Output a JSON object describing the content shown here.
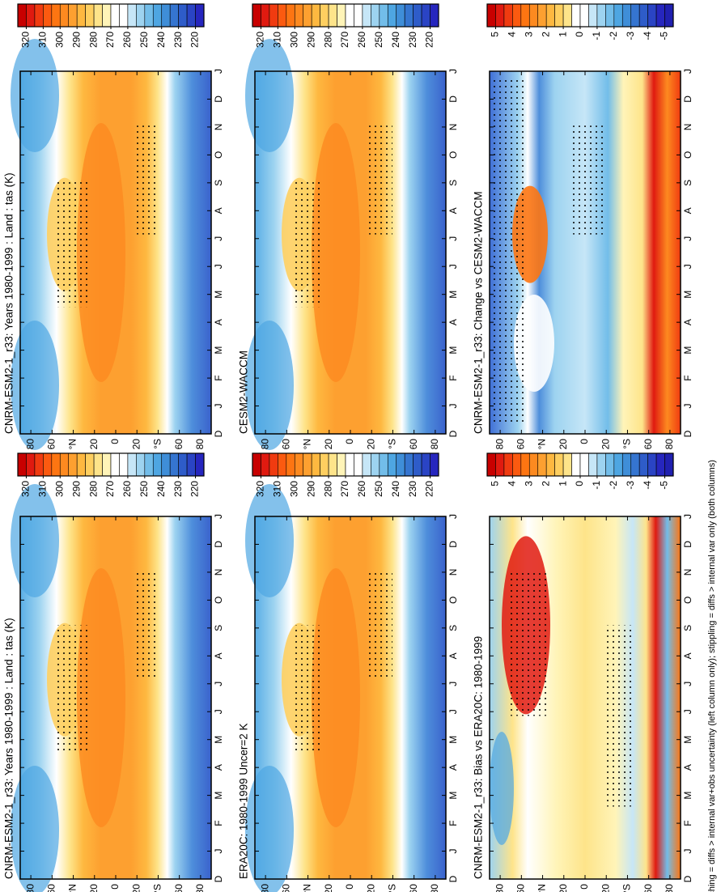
{
  "lat_ticks": [
    80,
    60,
    {
      "value": 40,
      "label": "°N"
    },
    20,
    0,
    {
      "value": -20,
      "label": "20"
    },
    {
      "value": -40,
      "label": "°S"
    },
    {
      "value": -60,
      "label": "60"
    },
    {
      "value": -80,
      "label": "80"
    }
  ],
  "lat_lim": [
    90,
    -90
  ],
  "months": [
    "D",
    "J",
    "F",
    "M",
    "A",
    "M",
    "J",
    "J",
    "A",
    "S",
    "O",
    "N",
    "D",
    "J"
  ],
  "footer": "hatching = diffs > internal var+obs uncertainty (left column only); stippling = diffs > internal var only (both columns)",
  "panels": [
    {
      "title": "CNRM-ESM2-1_r33: Years 1980-1999 : Land : tas (K)",
      "colorbar": {
        "lim": [
          325,
          215
        ],
        "labels": [
          320,
          310,
          300,
          290,
          280,
          270,
          260,
          250,
          240,
          230,
          220
        ],
        "colors": [
          "#c80000",
          "#e01a10",
          "#f03b10",
          "#fb5a10",
          "#fd7512",
          "#fd8a20",
          "#fda030",
          "#feb840",
          "#fecf60",
          "#fee48a",
          "#fff4b8",
          "#ffffff",
          "#ffffff",
          "#c6e6f7",
          "#9dd3f0",
          "#72bde9",
          "#4ea6e2",
          "#3f8ed8",
          "#3575d0",
          "#2e5cc9",
          "#2a44c4",
          "#2626be"
        ]
      }
    },
    {
      "title": "CESM2-WACCM",
      "colorbar": {
        "lim": [
          325,
          215
        ],
        "labels": [
          320,
          310,
          300,
          290,
          280,
          270,
          260,
          250,
          240,
          230,
          220
        ],
        "colors": [
          "#c80000",
          "#e01a10",
          "#f03b10",
          "#fb5a10",
          "#fd7512",
          "#fd8a20",
          "#fda030",
          "#feb840",
          "#fecf60",
          "#fee48a",
          "#fff4b8",
          "#ffffff",
          "#ffffff",
          "#c6e6f7",
          "#9dd3f0",
          "#72bde9",
          "#4ea6e2",
          "#3f8ed8",
          "#3575d0",
          "#2e5cc9",
          "#2a44c4",
          "#2626be"
        ]
      }
    },
    {
      "title": "CNRM-ESM2-1_r33: Change vs CESM2-WACCM",
      "colorbar": {
        "lim": [
          5.5,
          -5.5
        ],
        "labels": [
          5,
          4,
          3,
          2,
          1,
          0,
          -1,
          -2,
          -3,
          -4,
          -5
        ],
        "colors": [
          "#c80000",
          "#e01a10",
          "#f03b10",
          "#fb5a10",
          "#fd7512",
          "#fd8a20",
          "#fda030",
          "#feb840",
          "#fecf60",
          "#fee48a",
          "#ffffff",
          "#ffffff",
          "#c6e6f7",
          "#9dd3f0",
          "#72bde9",
          "#4ea6e2",
          "#3f8ed8",
          "#3575d0",
          "#2e5cc9",
          "#2a44c4",
          "#2626be",
          "#2020b0"
        ]
      }
    },
    {
      "title": "CNRM-ESM2-1_r33: Years 1980-1999 : Land : tas (K)",
      "colorbar": {
        "lim": [
          325,
          215
        ],
        "labels": [
          320,
          310,
          300,
          290,
          280,
          270,
          260,
          250,
          240,
          230,
          220
        ],
        "colors": [
          "#c80000",
          "#e01a10",
          "#f03b10",
          "#fb5a10",
          "#fd7512",
          "#fd8a20",
          "#fda030",
          "#feb840",
          "#fecf60",
          "#fee48a",
          "#fff4b8",
          "#ffffff",
          "#ffffff",
          "#c6e6f7",
          "#9dd3f0",
          "#72bde9",
          "#4ea6e2",
          "#3f8ed8",
          "#3575d0",
          "#2e5cc9",
          "#2a44c4",
          "#2626be"
        ]
      }
    },
    {
      "title": "ERA20C: 1980-1999 Uncer=2 K",
      "colorbar": {
        "lim": [
          325,
          215
        ],
        "labels": [
          320,
          310,
          300,
          290,
          280,
          270,
          260,
          250,
          240,
          230,
          220
        ],
        "colors": [
          "#c80000",
          "#e01a10",
          "#f03b10",
          "#fb5a10",
          "#fd7512",
          "#fd8a20",
          "#fda030",
          "#feb840",
          "#fecf60",
          "#fee48a",
          "#fff4b8",
          "#ffffff",
          "#ffffff",
          "#c6e6f7",
          "#9dd3f0",
          "#72bde9",
          "#4ea6e2",
          "#3f8ed8",
          "#3575d0",
          "#2e5cc9",
          "#2a44c4",
          "#2626be"
        ]
      }
    },
    {
      "title": "CNRM-ESM2-1_r33: Bias vs ERA20C: 1980-1999",
      "colorbar": {
        "lim": [
          5.5,
          -5.5
        ],
        "labels": [
          5,
          4,
          3,
          2,
          1,
          0,
          -1,
          -2,
          -3,
          -4,
          -5
        ],
        "colors": [
          "#c80000",
          "#e01a10",
          "#f03b10",
          "#fb5a10",
          "#fd7512",
          "#fd8a20",
          "#fda030",
          "#feb840",
          "#fecf60",
          "#fee48a",
          "#ffffff",
          "#ffffff",
          "#c6e6f7",
          "#9dd3f0",
          "#72bde9",
          "#4ea6e2",
          "#3f8ed8",
          "#3575d0",
          "#2e5cc9",
          "#2a44c4",
          "#2626be",
          "#2020b0"
        ]
      }
    }
  ]
}
